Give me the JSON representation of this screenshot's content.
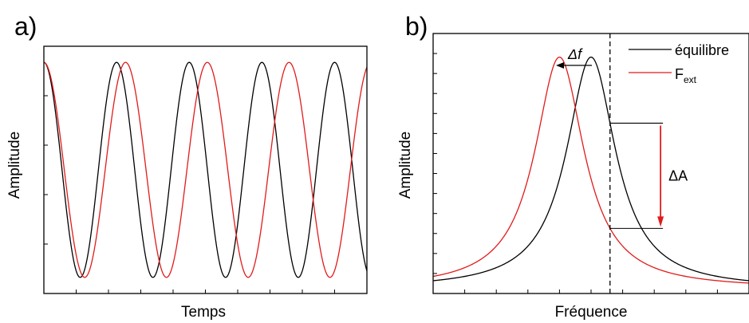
{
  "chart_data": [
    {
      "type": "line",
      "panel_label": "a)",
      "title": "",
      "xlabel": "Temps",
      "ylabel": "Amplitude",
      "xlim": [
        0,
        10
      ],
      "ylim": [
        -1.15,
        1.15
      ],
      "x_tick_labels": false,
      "y_tick_labels": false,
      "series": [
        {
          "name": "",
          "color": "#000000",
          "function": "cos",
          "period": 2.25,
          "phase": 0.0,
          "amplitude": 1.0
        },
        {
          "name": "",
          "color": "#e11b1b",
          "function": "cos",
          "period": 2.53,
          "phase": 0.0,
          "amplitude": 1.0
        }
      ]
    },
    {
      "type": "line",
      "panel_label": "b)",
      "title": "",
      "xlabel": "Fréquence",
      "ylabel": "Amplitude",
      "xlim": [
        0,
        10
      ],
      "ylim": [
        0,
        1.1
      ],
      "x_tick_labels": false,
      "y_tick_labels": false,
      "legend_position": "top-right",
      "series": [
        {
          "name": "équilibre",
          "name_sub": "",
          "color": "#000000",
          "function": "lorentzian",
          "center": 5.0,
          "width": 0.95,
          "baseline": 0.02,
          "peak": 1.0
        },
        {
          "name": "F",
          "name_sub": "ext",
          "color": "#e11b1b",
          "function": "lorentzian",
          "center": 4.0,
          "width": 0.95,
          "baseline": 0.02,
          "peak": 1.0
        }
      ],
      "annotations": {
        "vline_x": 5.6,
        "delta_f_label": "Δf",
        "delta_a_label": "ΔA",
        "delta_a_x": 7.2,
        "arrow_color": "#e11b1b"
      }
    }
  ]
}
